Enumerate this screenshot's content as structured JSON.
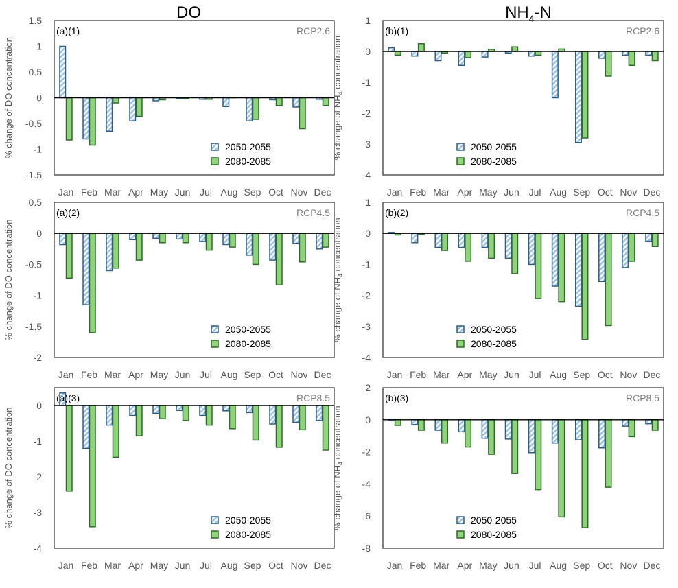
{
  "colors": {
    "series1_fill": "#bdd7ee",
    "series1_stroke": "#2e5f86",
    "series2_fill": "#8fd47a",
    "series2_stroke": "#2f6b2a",
    "frame": "#595959"
  },
  "column_titles": {
    "do": "DO",
    "nh4_main": "NH",
    "nh4_sub": "4",
    "nh4_tail": "-N"
  },
  "chart_data": [
    {
      "id": "a1",
      "type": "bar",
      "column": 0,
      "row": 0,
      "panel_label": "(a)(1)",
      "scenario": "RCP2.6",
      "ylabel": "% change of DO concentration",
      "ylim": [
        -1.5,
        1.5
      ],
      "yticks": [
        1.5,
        1,
        0.5,
        0,
        -0.5,
        -1,
        -1.5
      ],
      "ytick_labels": [
        "1.5",
        "1",
        "0.5",
        "0",
        "-0.5",
        "-1",
        "-1.5"
      ],
      "legend_position": "lower-right",
      "categories": [
        "Jan",
        "Feb",
        "Mar",
        "Apr",
        "May",
        "Jun",
        "Jul",
        "Aug",
        "Sep",
        "Oct",
        "Nov",
        "Dec"
      ],
      "series": [
        {
          "name": "2050-2055",
          "values": [
            1.0,
            -0.8,
            -0.65,
            -0.45,
            -0.06,
            -0.02,
            -0.03,
            -0.17,
            -0.45,
            -0.04,
            -0.18,
            -0.03
          ]
        },
        {
          "name": "2080-2085",
          "values": [
            -0.82,
            -0.92,
            -0.1,
            -0.36,
            -0.04,
            -0.02,
            -0.03,
            0.01,
            -0.42,
            -0.15,
            -0.6,
            -0.15
          ]
        }
      ]
    },
    {
      "id": "b1",
      "type": "bar",
      "column": 1,
      "row": 0,
      "panel_label": "(b)(1)",
      "scenario": "RCP2.6",
      "ylabel_main": "% change of NH",
      "ylabel_sub": "4",
      "ylabel_tail": " concentration",
      "ylim": [
        -4,
        1
      ],
      "yticks": [
        1,
        0,
        -1,
        -2,
        -3,
        -4
      ],
      "ytick_labels": [
        "1",
        "0",
        "-1",
        "-2",
        "-3",
        "-4"
      ],
      "legend_position": "lower-center",
      "categories": [
        "Jan",
        "Feb",
        "Mar",
        "Apr",
        "May",
        "Jun",
        "Jul",
        "Aug",
        "Sep",
        "Oct",
        "Nov",
        "Dec"
      ],
      "series": [
        {
          "name": "2050-2055",
          "values": [
            0.12,
            -0.15,
            -0.3,
            -0.45,
            -0.18,
            -0.05,
            -0.15,
            -1.5,
            -2.95,
            -0.22,
            -0.12,
            -0.12
          ]
        },
        {
          "name": "2080-2085",
          "values": [
            -0.12,
            0.25,
            -0.05,
            -0.2,
            0.07,
            0.15,
            -0.12,
            0.08,
            -2.8,
            -0.8,
            -0.45,
            -0.3
          ]
        }
      ]
    },
    {
      "id": "a2",
      "type": "bar",
      "column": 0,
      "row": 1,
      "panel_label": "(a)(2)",
      "scenario": "RCP4.5",
      "ylabel": "% change of DO concentration",
      "ylim": [
        -2,
        0.5
      ],
      "yticks": [
        0.5,
        0,
        -0.5,
        -1,
        -1.5,
        -2
      ],
      "ytick_labels": [
        "0.5",
        "0",
        "-0.5",
        "-1",
        "-1.5",
        "-2"
      ],
      "legend_position": "lower-right",
      "categories": [
        "Jan",
        "Feb",
        "Mar",
        "Apr",
        "May",
        "Jun",
        "Jul",
        "Aug",
        "Sep",
        "Oct",
        "Nov",
        "Dec"
      ],
      "series": [
        {
          "name": "2050-2055",
          "values": [
            -0.18,
            -1.15,
            -0.6,
            -0.1,
            -0.08,
            -0.09,
            -0.13,
            -0.18,
            -0.35,
            -0.43,
            -0.16,
            -0.25
          ]
        },
        {
          "name": "2080-2085",
          "values": [
            -0.72,
            -1.6,
            -0.56,
            -0.43,
            -0.15,
            -0.15,
            -0.27,
            -0.22,
            -0.5,
            -0.83,
            -0.46,
            -0.22
          ]
        }
      ]
    },
    {
      "id": "b2",
      "type": "bar",
      "column": 1,
      "row": 1,
      "panel_label": "(b)(2)",
      "scenario": "RCP4.5",
      "ylabel_main": "% change of NH",
      "ylabel_sub": "4",
      "ylabel_tail": " concentration",
      "ylim": [
        -4,
        1
      ],
      "yticks": [
        1,
        0,
        -1,
        -2,
        -3,
        -4
      ],
      "ytick_labels": [
        "1",
        "0",
        "-1",
        "-2",
        "-3",
        "-4"
      ],
      "legend_position": "lower-center",
      "categories": [
        "Jan",
        "Feb",
        "Mar",
        "Apr",
        "May",
        "Jun",
        "Jul",
        "Aug",
        "Sep",
        "Oct",
        "Nov",
        "Dec"
      ],
      "series": [
        {
          "name": "2050-2055",
          "values": [
            0.03,
            -0.3,
            -0.45,
            -0.45,
            -0.45,
            -0.8,
            -1.0,
            -1.7,
            -2.35,
            -1.55,
            -1.1,
            -0.25
          ]
        },
        {
          "name": "2080-2085",
          "values": [
            -0.05,
            -0.03,
            -0.55,
            -0.9,
            -0.8,
            -1.3,
            -2.1,
            -2.2,
            -3.42,
            -2.97,
            -0.9,
            -0.42
          ]
        }
      ]
    },
    {
      "id": "a3",
      "type": "bar",
      "column": 0,
      "row": 2,
      "panel_label": "(a)(3)",
      "scenario": "RCP8.5",
      "ylabel": "% change of DO concentration",
      "ylim": [
        -4,
        0.5
      ],
      "yticks": [
        0,
        -1,
        -2,
        -3,
        -4
      ],
      "ytick_labels": [
        "0",
        "-1",
        "-2",
        "-3",
        "-4"
      ],
      "legend_position": "lower-right",
      "categories": [
        "Jan",
        "Feb",
        "Mar",
        "Apr",
        "May",
        "Jun",
        "Jul",
        "Aug",
        "Sep",
        "Oct",
        "Nov",
        "Dec"
      ],
      "series": [
        {
          "name": "2050-2055",
          "values": [
            0.35,
            -1.2,
            -0.55,
            -0.28,
            -0.22,
            -0.14,
            -0.28,
            -0.15,
            -0.2,
            -0.52,
            -0.47,
            -0.42
          ]
        },
        {
          "name": "2080-2085",
          "values": [
            -2.4,
            -3.4,
            -1.45,
            -0.85,
            -0.37,
            -0.42,
            -0.55,
            -0.65,
            -0.97,
            -1.17,
            -0.68,
            -1.25
          ]
        }
      ]
    },
    {
      "id": "b3",
      "type": "bar",
      "column": 1,
      "row": 2,
      "panel_label": "(b)(3)",
      "scenario": "RCP8.5",
      "ylabel_main": "% change of NH",
      "ylabel_sub": "4",
      "ylabel_tail": " concentration",
      "ylim": [
        -8,
        2
      ],
      "yticks": [
        2,
        0,
        -2,
        -4,
        -6,
        -8
      ],
      "ytick_labels": [
        "2",
        "0",
        "-2",
        "-4",
        "-6",
        "-8"
      ],
      "legend_position": "lower-center",
      "categories": [
        "Jan",
        "Feb",
        "Mar",
        "Apr",
        "May",
        "Jun",
        "Jul",
        "Aug",
        "Sep",
        "Oct",
        "Nov",
        "Dec"
      ],
      "series": [
        {
          "name": "2050-2055",
          "values": [
            0.02,
            -0.3,
            -0.65,
            -0.75,
            -1.15,
            -1.2,
            -2.05,
            -1.45,
            -1.25,
            -1.75,
            -0.4,
            -0.25
          ]
        },
        {
          "name": "2080-2085",
          "values": [
            -0.35,
            -0.65,
            -1.45,
            -1.7,
            -2.15,
            -3.35,
            -4.35,
            -6.05,
            -6.72,
            -4.2,
            -1.05,
            -0.65
          ]
        }
      ]
    }
  ]
}
